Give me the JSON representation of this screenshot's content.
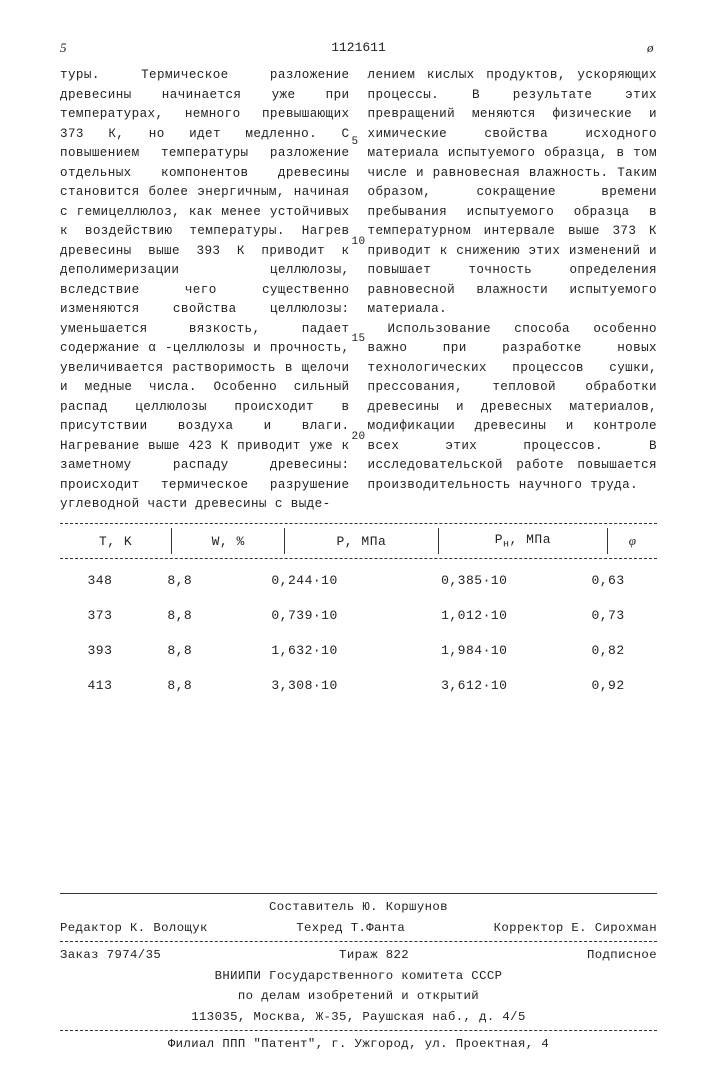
{
  "header": {
    "number": "1121611",
    "left_mark": "5",
    "right_mark": "ø"
  },
  "body": {
    "left": "туры. Термическое разложение древесины начинается уже при температурах, немного превышающих 373 К, но идет медленно. С повышением температуры разложение отдельных компонентов древесины становится более энергичным, начиная с гемицеллюлоз, как менее устойчивых к воздействию температуры. Нагрев древесины выше 393 К приводит к деполимеризации целлюлозы, вследствие чего существенно изменяются свойства целлюлозы: уменьшается вязкость, падает содержание α -целлюлозы и прочность, увеличивается растворимость в щелочи и медные числа. Особенно сильный распад целлюлозы происходит в присутствии воздуха и влаги. Нагревание выше 423 К приводит уже к заметному распаду древесины: происходит термическое разрушение углеводной части древесины с выде-",
    "right_intro": "лением кислых продуктов, ускоряющих процессы. В результате этих превращений меняются физические и химические свойства исходного материала испытуемого образца, в том числе и равновесная влажность. Таким образом, сокращение времени пребывания испытуемого образца в температурном интервале выше 373 К приводит к снижению этих изменений и повышает точность определения равновесной влажности испытуемого материала.",
    "right_second": "Использование способа особенно важно при разработке новых технологических процессов сушки, прессования, тепловой обработки древесины и древесных материалов, модификации древесины и контроле всех этих процессов. В исследовательской работе повышается производительность научного труда."
  },
  "table": {
    "headers": {
      "c1": "T, K",
      "c2": "W, %",
      "c3": "P, МПа",
      "c4": "Pн, МПа",
      "c5": "φ"
    },
    "rows": [
      {
        "c1": "348",
        "c2": "8,8",
        "c3": "0,244·10",
        "c4": "0,385·10",
        "c5": "0,63"
      },
      {
        "c1": "373",
        "c2": "8,8",
        "c3": "0,739·10",
        "c4": "1,012·10",
        "c5": "0,73"
      },
      {
        "c1": "393",
        "c2": "8,8",
        "c3": "1,632·10",
        "c4": "1,984·10",
        "c5": "0,82"
      },
      {
        "c1": "413",
        "c2": "8,8",
        "c3": "3,308·10",
        "c4": "3,612·10",
        "c5": "0,92"
      }
    ]
  },
  "footer": {
    "compiler": "Составитель Ю. Коршунов",
    "editor": "Редактор К. Волощук",
    "techred": "Техред Т.Фанта",
    "corrector": "Корректор Е. Сирохман",
    "order": "Заказ 7974/35",
    "circulation": "Тираж 822",
    "signed": "Подписное",
    "org1": "ВНИИПИ Государственного комитета СССР",
    "org2": "по делам изобретений и открытий",
    "addr": "113035, Москва, Ж-35, Раушская наб., д. 4/5",
    "branch": "Филиал ППП \"Патент\", г. Ужгород, ул. Проектная, 4"
  },
  "linenums": {
    "n5": "5",
    "n10": "10",
    "n15": "15",
    "n20": "20"
  }
}
